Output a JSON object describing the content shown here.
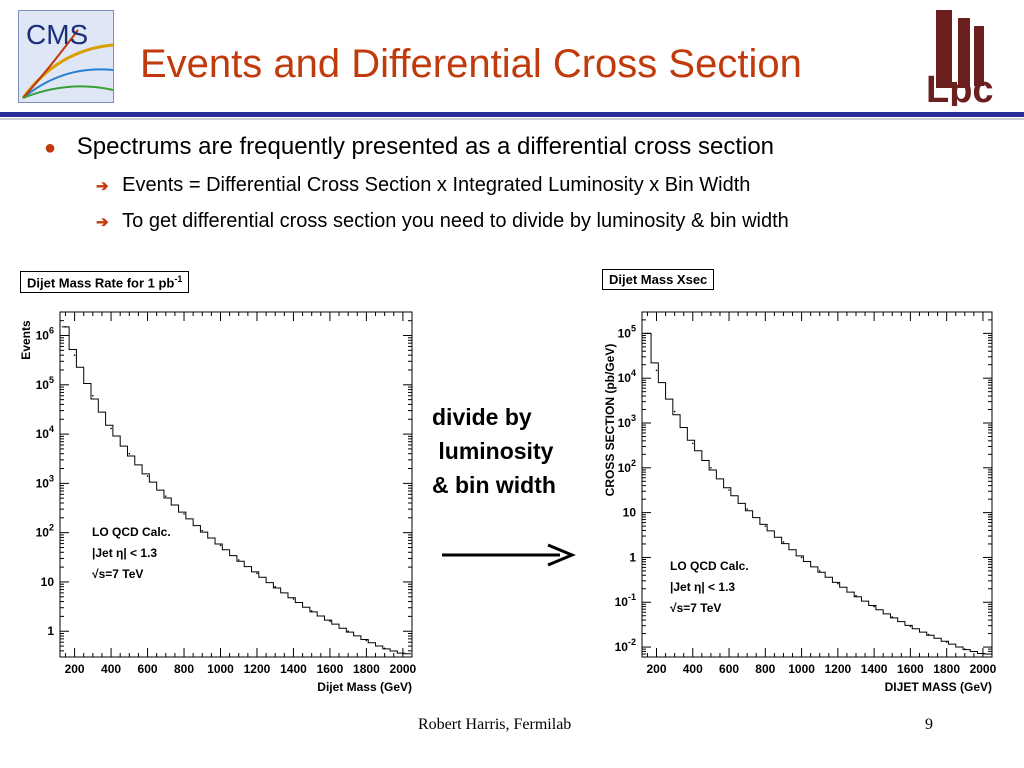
{
  "slide": {
    "title": "Events and Differential Cross Section",
    "bullet": "Spectrums are frequently presented as a differential cross section",
    "subbullets": [
      "Events = Differential Cross Section  x  Integrated Luminosity x Bin Width",
      "To get differential cross section you need to divide by luminosity & bin width"
    ],
    "middle_text": "divide by\n luminosity\n& bin width",
    "footer": "Robert Harris, Fermilab",
    "page_number": "9",
    "logos": {
      "left": "CMS",
      "right": "Lpc"
    },
    "accent_color": "#c03a0c",
    "rule_color": "#2a2a9a"
  },
  "chart_data": [
    {
      "type": "line",
      "title": "Dijet Mass Rate for 1 pb",
      "title_superscript": "-1",
      "xlabel": "Dijet Mass (GeV)",
      "ylabel": "Events",
      "yscale": "log",
      "xlim": [
        120,
        2050
      ],
      "ylim": [
        0.3,
        3000000
      ],
      "xticks": [
        "200",
        "400",
        "600",
        "800",
        "1000",
        "1200",
        "1400",
        "1600",
        "1800",
        "2000"
      ],
      "yticks": [
        {
          "base": "1",
          "exp": ""
        },
        {
          "base": "10",
          "exp": ""
        },
        {
          "base": "10",
          "exp": "2"
        },
        {
          "base": "10",
          "exp": "3"
        },
        {
          "base": "10",
          "exp": "4"
        },
        {
          "base": "10",
          "exp": "5"
        },
        {
          "base": "10",
          "exp": "6"
        }
      ],
      "annotations": [
        "LO QCD Calc.",
        "|Jet η| < 1.3",
        "√s=7 TeV"
      ],
      "x": [
        150,
        200,
        300,
        400,
        500,
        600,
        700,
        800,
        900,
        1000,
        1100,
        1200,
        1300,
        1400,
        1500,
        1600,
        1700,
        1800,
        1900,
        2000
      ],
      "y": [
        1500000,
        400000,
        60000,
        13000,
        4000,
        1400,
        550,
        240,
        110,
        55,
        28,
        15,
        8,
        4.5,
        2.6,
        1.6,
        1.0,
        0.65,
        0.45,
        0.35
      ]
    },
    {
      "type": "line",
      "title": "Dijet Mass Xsec",
      "xlabel": "DIJET MASS (GeV)",
      "ylabel": "CROSS  SECTION (pb/GeV)",
      "yscale": "log",
      "xlim": [
        120,
        2050
      ],
      "ylim": [
        0.006,
        300000
      ],
      "xticks": [
        "200",
        "400",
        "600",
        "800",
        "1000",
        "1200",
        "1400",
        "1600",
        "1800",
        "2000"
      ],
      "yticks": [
        {
          "base": "10",
          "exp": "-2"
        },
        {
          "base": "10",
          "exp": "-1"
        },
        {
          "base": "1",
          "exp": ""
        },
        {
          "base": "10",
          "exp": ""
        },
        {
          "base": "10",
          "exp": "2"
        },
        {
          "base": "10",
          "exp": "3"
        },
        {
          "base": "10",
          "exp": "4"
        },
        {
          "base": "10",
          "exp": "5"
        }
      ],
      "annotations": [
        "LO QCD Calc.",
        "|Jet η| < 1.3",
        "√s=7 TeV"
      ],
      "x": [
        150,
        200,
        300,
        400,
        500,
        600,
        700,
        800,
        900,
        1000,
        1100,
        1200,
        1300,
        1400,
        1500,
        1600,
        1700,
        1800,
        1900,
        2000
      ],
      "y": [
        100000,
        15000,
        1800,
        350,
        100,
        32,
        12,
        5,
        2.2,
        1.0,
        0.5,
        0.26,
        0.14,
        0.08,
        0.047,
        0.029,
        0.019,
        0.013,
        0.009,
        0.007
      ]
    }
  ]
}
